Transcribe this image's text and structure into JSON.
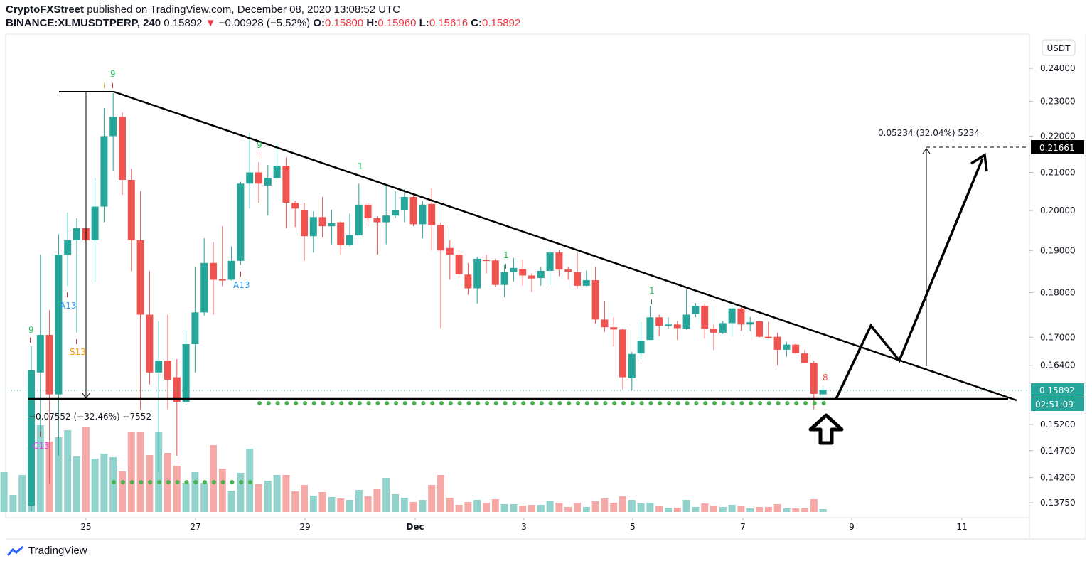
{
  "header": {
    "publisher": "CryptoFXStreet",
    "published_text": "published on TradingView.com, December 08, 2020 13:08:52 UTC",
    "symbol": "BINANCE:XLMUSDTPERP, 240",
    "last": "0.15892",
    "change": "−0.00928 (−5.52%)",
    "o_label": "O:",
    "o": "0.15800",
    "h_label": "H:",
    "h": "0.15960",
    "l_label": "L:",
    "l": "0.15616",
    "c_label": "C:",
    "c": "0.15892"
  },
  "currency": "USDT",
  "price_ticks": [
    "0.24000",
    "0.23000",
    "0.22000",
    "0.21000",
    "0.20000",
    "0.19000",
    "0.18000",
    "0.17000",
    "0.16400",
    "0.15200",
    "0.14700",
    "0.14200",
    "0.13750"
  ],
  "price_label": "0.15892",
  "countdown": "02:51:09",
  "target_label": "0.21661",
  "x_ticks": [
    "25",
    "27",
    "29",
    "Dec",
    "3",
    "5",
    "7",
    "9",
    "11"
  ],
  "measure_down": "−0.07552 (−32.46%) −7552",
  "measure_up": "0.05234 (32.04%) 5234",
  "annotations": {
    "nine_a": "9",
    "nine_b": "9",
    "nine_c": "9",
    "one_a": "1",
    "one_b": "1",
    "one_c": "1",
    "eight": "8",
    "a13_a": "A13",
    "a13_b": "A13",
    "s13": "S13",
    "c13": "C13",
    "i_mark": "i"
  },
  "logo": "TradingView",
  "colors": {
    "up": "#26a69a",
    "down": "#ef5350",
    "up_vol": "#92d2cc",
    "down_vol": "#f7a9a7",
    "dots": "#4caf50"
  },
  "chart_data": {
    "type": "candlestick",
    "title": "BINANCE:XLMUSDTPERP, 240",
    "ylabel": "USDT",
    "yscale": "log",
    "ylim": [
      0.1355,
      0.2475
    ],
    "fields": [
      "open",
      "high",
      "low",
      "close",
      "volume_rel"
    ],
    "candles": [
      [
        null,
        null,
        null,
        null,
        56
      ],
      [
        null,
        null,
        null,
        null,
        24
      ],
      [
        null,
        null,
        null,
        null,
        52
      ],
      [
        0.137,
        0.168,
        0.136,
        0.163,
        120
      ],
      [
        0.1625,
        0.189,
        0.15,
        0.1705,
        122
      ],
      [
        0.1705,
        0.176,
        0.141,
        0.158,
        99
      ],
      [
        0.158,
        0.194,
        0.146,
        0.189,
        105
      ],
      [
        0.189,
        0.1995,
        0.1815,
        0.1925,
        115
      ],
      [
        0.1925,
        0.198,
        0.171,
        0.1955,
        78
      ],
      [
        0.1955,
        0.1958,
        0.192,
        0.1925,
        120
      ],
      [
        0.1925,
        0.2085,
        0.1825,
        0.201,
        75
      ],
      [
        0.201,
        0.228,
        0.197,
        0.22,
        82
      ],
      [
        0.22,
        0.2325,
        0.2105,
        0.2255,
        77
      ],
      [
        0.2255,
        0.2268,
        0.204,
        0.208,
        57
      ],
      [
        0.208,
        0.211,
        0.185,
        0.1925,
        112
      ],
      [
        0.1925,
        0.205,
        0.155,
        0.175,
        112
      ],
      [
        0.175,
        0.185,
        0.16,
        0.1625,
        80
      ],
      [
        0.1625,
        0.1735,
        0.143,
        0.165,
        112
      ],
      [
        0.165,
        0.175,
        0.155,
        0.161,
        83
      ],
      [
        0.1615,
        0.1653,
        0.146,
        0.1565,
        65
      ],
      [
        0.1565,
        0.1715,
        0.156,
        0.1685,
        41
      ],
      [
        0.1685,
        0.186,
        0.1625,
        0.1755,
        56
      ],
      [
        0.1755,
        0.193,
        0.1748,
        0.187,
        41
      ],
      [
        0.187,
        0.192,
        0.175,
        0.183,
        94
      ],
      [
        0.1832,
        0.196,
        0.1815,
        0.1828,
        61
      ],
      [
        0.183,
        0.191,
        0.1828,
        0.1875,
        30
      ],
      [
        0.1875,
        0.2075,
        0.1865,
        0.207,
        55
      ],
      [
        0.207,
        0.221,
        0.2005,
        0.21,
        89
      ],
      [
        0.21,
        0.2128,
        0.202,
        0.207,
        39
      ],
      [
        0.2065,
        0.212,
        0.1987,
        0.2085,
        44
      ],
      [
        0.2085,
        0.218,
        0.208,
        0.2118,
        52
      ],
      [
        0.2118,
        0.214,
        0.1955,
        0.202,
        52
      ],
      [
        0.202,
        0.2025,
        0.1958,
        0.2005,
        29
      ],
      [
        0.2,
        0.202,
        0.1875,
        0.1935,
        38
      ],
      [
        0.1935,
        0.1998,
        0.1895,
        0.1983,
        23
      ],
      [
        0.1983,
        0.2035,
        0.1932,
        0.196,
        28
      ],
      [
        0.196,
        0.2002,
        0.1915,
        0.1968,
        21
      ],
      [
        0.197,
        0.1972,
        0.189,
        0.1913,
        19
      ],
      [
        0.1913,
        0.1992,
        0.191,
        0.1938,
        17
      ],
      [
        0.1937,
        0.207,
        0.1937,
        0.2015,
        31
      ],
      [
        0.2015,
        0.202,
        0.196,
        0.198,
        22
      ],
      [
        0.198,
        0.1985,
        0.189,
        0.197,
        32
      ],
      [
        0.197,
        0.2065,
        0.1915,
        0.1987,
        48
      ],
      [
        0.1987,
        0.205,
        0.198,
        0.2,
        25
      ],
      [
        0.2,
        0.2055,
        0.197,
        0.2035,
        20
      ],
      [
        0.2035,
        0.204,
        0.196,
        0.1965,
        14
      ],
      [
        0.1965,
        0.2025,
        0.193,
        0.2015,
        17
      ],
      [
        0.2017,
        0.2058,
        0.19,
        0.1963,
        38
      ],
      [
        0.1963,
        0.197,
        0.172,
        0.19,
        52
      ],
      [
        0.1906,
        0.1925,
        0.183,
        0.189,
        20
      ],
      [
        0.189,
        0.19,
        0.1835,
        0.1843,
        10
      ],
      [
        0.1842,
        0.187,
        0.1795,
        0.181,
        14
      ],
      [
        0.181,
        0.1884,
        0.1775,
        0.188,
        17
      ],
      [
        0.1877,
        0.189,
        0.1845,
        0.1875,
        13
      ],
      [
        0.1876,
        0.188,
        0.1813,
        0.1818,
        18
      ],
      [
        0.1818,
        0.1866,
        0.179,
        0.1848,
        11
      ],
      [
        0.1848,
        0.1882,
        0.1826,
        0.1858,
        11
      ],
      [
        0.1855,
        0.1878,
        0.1816,
        0.184,
        9
      ],
      [
        0.184,
        0.1845,
        0.1802,
        0.1833,
        10
      ],
      [
        0.1834,
        0.186,
        0.1816,
        0.1851,
        10
      ],
      [
        0.1851,
        0.1905,
        0.1816,
        0.1895,
        16
      ],
      [
        0.1895,
        0.1902,
        0.1838,
        0.1854,
        13
      ],
      [
        0.1854,
        0.186,
        0.183,
        0.1849,
        7
      ],
      [
        0.1848,
        0.1895,
        0.181,
        0.1816,
        13
      ],
      [
        0.1816,
        0.1852,
        0.1815,
        0.1829,
        7
      ],
      [
        0.1829,
        0.186,
        0.173,
        0.1739,
        15
      ],
      [
        0.1739,
        0.178,
        0.1712,
        0.1722,
        19
      ],
      [
        0.1722,
        0.1744,
        0.168,
        0.1717,
        13
      ],
      [
        0.1717,
        0.1719,
        0.159,
        0.1615,
        22
      ],
      [
        0.1613,
        0.1668,
        0.1588,
        0.1664,
        17
      ],
      [
        0.1665,
        0.1734,
        0.1652,
        0.1692,
        12
      ],
      [
        0.1694,
        0.177,
        0.1694,
        0.1744,
        13
      ],
      [
        0.1744,
        0.175,
        0.1703,
        0.1725,
        8
      ],
      [
        0.1725,
        0.1744,
        0.1719,
        0.1728,
        6
      ],
      [
        0.1728,
        0.1736,
        0.1694,
        0.172,
        6
      ],
      [
        0.1719,
        0.1808,
        0.1717,
        0.175,
        17
      ],
      [
        0.1751,
        0.1776,
        0.1744,
        0.177,
        7
      ],
      [
        0.177,
        0.1775,
        0.1697,
        0.1719,
        12
      ],
      [
        0.1719,
        0.1728,
        0.1672,
        0.171,
        9
      ],
      [
        0.171,
        0.1736,
        0.1707,
        0.1731,
        7
      ],
      [
        0.1731,
        0.1772,
        0.1703,
        0.1764,
        10
      ],
      [
        0.1764,
        0.177,
        0.1714,
        0.1728,
        8
      ],
      [
        0.1728,
        0.1745,
        0.1713,
        0.1733,
        5
      ],
      [
        0.1735,
        0.1736,
        0.1699,
        0.1701,
        7
      ],
      [
        0.1701,
        0.1734,
        0.1697,
        0.1698,
        7
      ],
      [
        0.1701,
        0.171,
        0.164,
        0.1673,
        11
      ],
      [
        0.1673,
        0.169,
        0.1658,
        0.1684,
        5
      ],
      [
        0.1684,
        0.1686,
        0.1664,
        0.1666,
        5
      ],
      [
        0.1665,
        0.1673,
        0.1644,
        0.1645,
        5
      ],
      [
        0.1645,
        0.165,
        0.155,
        0.1581,
        18
      ],
      [
        0.158,
        0.1596,
        0.15616,
        0.15892,
        4
      ]
    ],
    "support_level": 0.1571,
    "target_level": 0.21661
  }
}
